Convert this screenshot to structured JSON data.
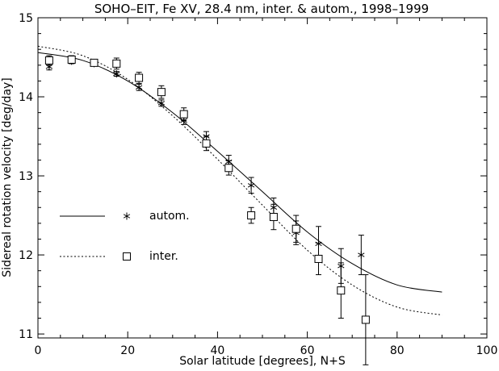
{
  "chart_data": {
    "type": "scatter",
    "title": "SOHO–EIT, Fe XV, 28.4 nm, inter. & autom., 1998–1999",
    "xlabel": "Solar latitude [degrees], N+S",
    "ylabel": "Sidereal rotation velocity [deg/day]",
    "xlim": [
      0,
      100
    ],
    "ylim": [
      10.95,
      15.0
    ],
    "x_ticks": [
      "0",
      "20",
      "40",
      "60",
      "80",
      "100"
    ],
    "y_ticks": [
      "11",
      "12",
      "13",
      "14",
      "15"
    ],
    "x_tick_values": [
      0,
      20,
      40,
      60,
      80,
      100
    ],
    "y_tick_values": [
      11,
      12,
      13,
      14,
      15
    ],
    "grid": false,
    "legend_position": "lower-left",
    "series": [
      {
        "name": "autom.",
        "marker": "asterisk",
        "line_style": "solid",
        "points": [
          {
            "x": 2.5,
            "y": 14.38,
            "err": 0.04
          },
          {
            "x": 7.5,
            "y": 14.45,
            "err": 0.03
          },
          {
            "x": 12.5,
            "y": 14.42,
            "err": 0.03
          },
          {
            "x": 17.5,
            "y": 14.29,
            "err": 0.03
          },
          {
            "x": 22.5,
            "y": 14.12,
            "err": 0.04
          },
          {
            "x": 27.5,
            "y": 13.92,
            "err": 0.04
          },
          {
            "x": 32.5,
            "y": 13.7,
            "err": 0.05
          },
          {
            "x": 37.5,
            "y": 13.5,
            "err": 0.06
          },
          {
            "x": 42.5,
            "y": 13.18,
            "err": 0.08
          },
          {
            "x": 47.5,
            "y": 12.88,
            "err": 0.1
          },
          {
            "x": 52.5,
            "y": 12.6,
            "err": 0.12
          },
          {
            "x": 57.5,
            "y": 12.28,
            "err": 0.15
          },
          {
            "x": 62.5,
            "y": 12.14,
            "err": 0.22
          },
          {
            "x": 67.5,
            "y": 11.86,
            "err": 0.22
          },
          {
            "x": 72.0,
            "y": 12.0,
            "err": 0.25
          }
        ],
        "fit": [
          {
            "x": 0,
            "y": 14.56
          },
          {
            "x": 10,
            "y": 14.46
          },
          {
            "x": 20,
            "y": 14.2
          },
          {
            "x": 30,
            "y": 13.8
          },
          {
            "x": 40,
            "y": 13.31
          },
          {
            "x": 50,
            "y": 12.8
          },
          {
            "x": 60,
            "y": 12.29
          },
          {
            "x": 70,
            "y": 11.89
          },
          {
            "x": 80,
            "y": 11.62
          },
          {
            "x": 90,
            "y": 11.53
          }
        ]
      },
      {
        "name": "inter.",
        "marker": "square",
        "line_style": "dotted",
        "points": [
          {
            "x": 2.5,
            "y": 14.46,
            "err": 0.06
          },
          {
            "x": 7.5,
            "y": 14.47,
            "err": 0.05
          },
          {
            "x": 12.5,
            "y": 14.43,
            "err": 0.04
          },
          {
            "x": 17.5,
            "y": 14.42,
            "err": 0.07
          },
          {
            "x": 22.5,
            "y": 14.24,
            "err": 0.07
          },
          {
            "x": 27.5,
            "y": 14.06,
            "err": 0.08
          },
          {
            "x": 32.5,
            "y": 13.78,
            "err": 0.08
          },
          {
            "x": 37.5,
            "y": 13.41,
            "err": 0.09
          },
          {
            "x": 42.5,
            "y": 13.1,
            "err": 0.09
          },
          {
            "x": 47.5,
            "y": 12.5,
            "err": 0.1
          },
          {
            "x": 52.5,
            "y": 12.48,
            "err": 0.16
          },
          {
            "x": 57.5,
            "y": 12.33,
            "err": 0.17
          },
          {
            "x": 62.5,
            "y": 11.95,
            "err": 0.2
          },
          {
            "x": 67.5,
            "y": 11.55,
            "err": 0.35
          },
          {
            "x": 73.0,
            "y": 11.18,
            "err": 0.57
          }
        ],
        "fit": [
          {
            "x": 0,
            "y": 14.64
          },
          {
            "x": 10,
            "y": 14.52
          },
          {
            "x": 20,
            "y": 14.22
          },
          {
            "x": 30,
            "y": 13.76
          },
          {
            "x": 40,
            "y": 13.21
          },
          {
            "x": 50,
            "y": 12.63
          },
          {
            "x": 60,
            "y": 12.06
          },
          {
            "x": 70,
            "y": 11.62
          },
          {
            "x": 80,
            "y": 11.34
          },
          {
            "x": 90,
            "y": 11.24
          }
        ]
      }
    ]
  }
}
